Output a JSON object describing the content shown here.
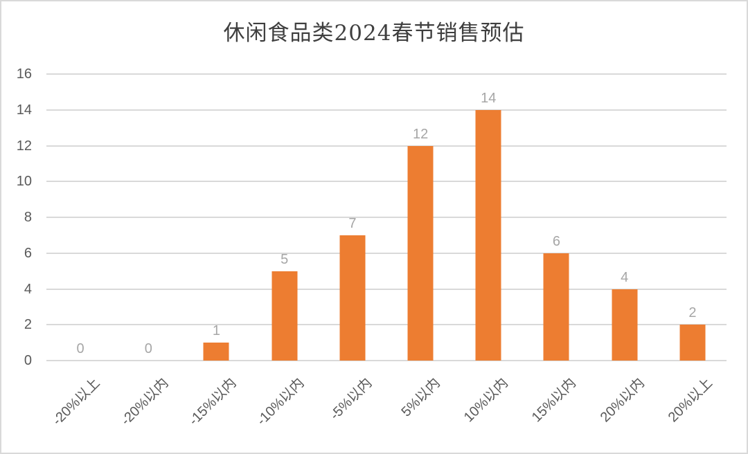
{
  "window": {
    "background": "#FFFFFF",
    "border_color": "#D9D9D9"
  },
  "chart_data": {
    "type": "bar",
    "title": "休闲食品类2024春节销售预估",
    "categories": [
      "-20%以上",
      "-20%以内",
      "-15%以内",
      "-10%以内",
      "-5%以内",
      "5%以内",
      "10%以内",
      "15%以内",
      "20%以内",
      "20%以上"
    ],
    "values": [
      0,
      0,
      1,
      5,
      7,
      12,
      14,
      6,
      4,
      2
    ],
    "xlabel": "",
    "ylabel": "",
    "ylim": [
      0,
      16
    ],
    "yticks": [
      0,
      2,
      4,
      6,
      8,
      10,
      12,
      14,
      16
    ],
    "grid": true,
    "legend": "none",
    "data_labels_shown": true,
    "x_label_rotation_deg": 45,
    "bar_color": "#ED7D31",
    "gridline_color": "#D9D9D9",
    "data_label_color": "#A6A6A6",
    "axis_label_color": "#595959",
    "title_color": "#3F3F3F"
  }
}
